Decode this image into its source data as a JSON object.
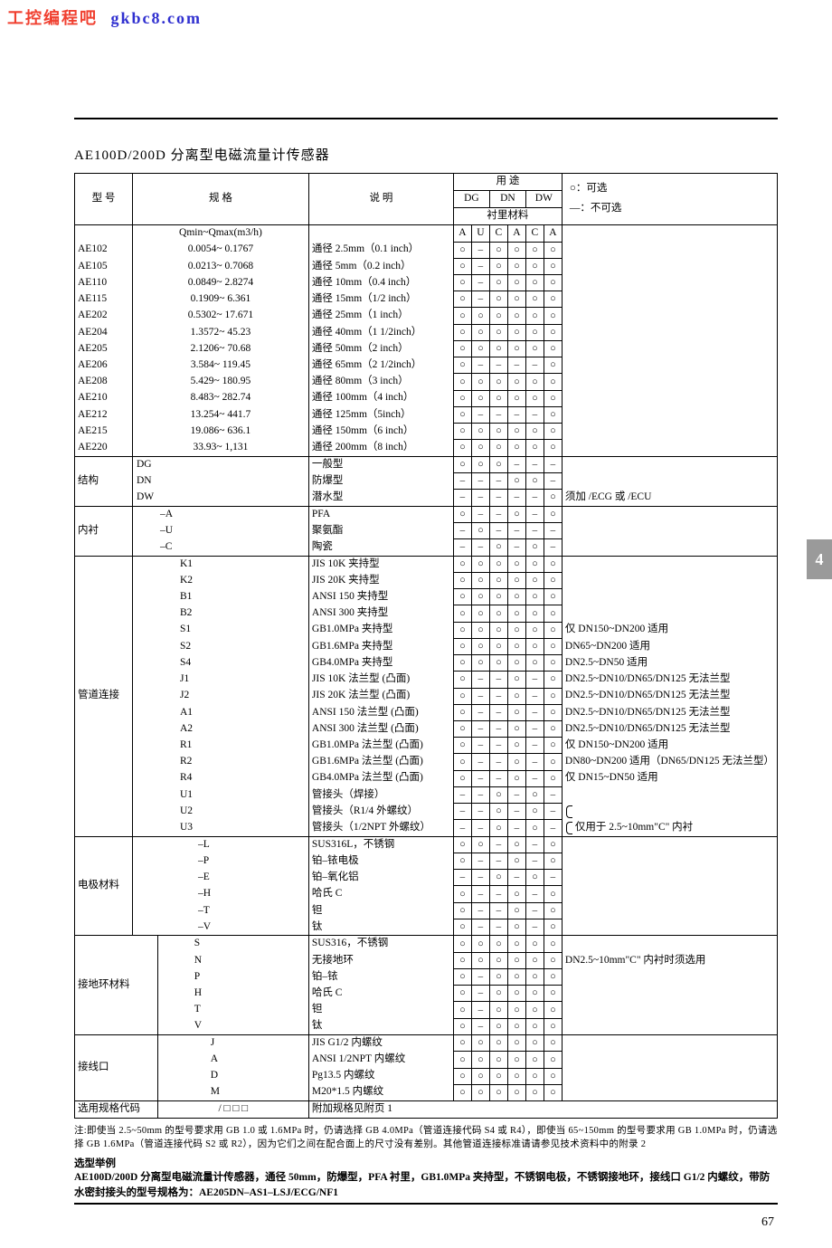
{
  "watermark": {
    "ch": "工控编程吧",
    "en": "gkbc8.com"
  },
  "title": "AE100D/200D 分离型电磁流量计传感器",
  "legend": {
    "optional": "○：可选",
    "not_optional": "—：不可选"
  },
  "header": {
    "model": "型  号",
    "spec": "规      格",
    "desc": "说      明",
    "use": "用      途",
    "group_DG": "DG",
    "group_DN": "DN",
    "group_DW": "DW",
    "lining": "衬里材料",
    "cols": [
      "A",
      "U",
      "C",
      "A",
      "C",
      "A"
    ]
  },
  "spec_header": "Qmin~Qmax(m3/h)",
  "size_rows": [
    {
      "model": "AE102",
      "spec": "0.0054~ 0.1767",
      "desc": "通径 2.5mm（0.1 inch）",
      "m": [
        "○",
        "–",
        "○",
        "○",
        "○",
        "○"
      ]
    },
    {
      "model": "AE105",
      "spec": "0.0213~ 0.7068",
      "desc": "通径 5mm（0.2 inch）",
      "m": [
        "○",
        "–",
        "○",
        "○",
        "○",
        "○"
      ]
    },
    {
      "model": "AE110",
      "spec": "0.0849~ 2.8274",
      "desc": "通径 10mm（0.4 inch）",
      "m": [
        "○",
        "–",
        "○",
        "○",
        "○",
        "○"
      ]
    },
    {
      "model": "AE115",
      "spec": "0.1909~ 6.361",
      "desc": "通径 15mm（1/2 inch）",
      "m": [
        "○",
        "–",
        "○",
        "○",
        "○",
        "○"
      ]
    },
    {
      "model": "AE202",
      "spec": "0.5302~ 17.671",
      "desc": "通径 25mm（1 inch）",
      "m": [
        "○",
        "○",
        "○",
        "○",
        "○",
        "○"
      ]
    },
    {
      "model": "AE204",
      "spec": "1.3572~ 45.23",
      "desc": "通径 40mm（1 1/2inch）",
      "m": [
        "○",
        "○",
        "○",
        "○",
        "○",
        "○"
      ]
    },
    {
      "model": "AE205",
      "spec": "2.1206~ 70.68",
      "desc": "通径 50mm（2 inch）",
      "m": [
        "○",
        "○",
        "○",
        "○",
        "○",
        "○"
      ]
    },
    {
      "model": "AE206",
      "spec": "3.584~ 119.45",
      "desc": "通径 65mm（2 1/2inch）",
      "m": [
        "○",
        "–",
        "–",
        "–",
        "–",
        "○"
      ]
    },
    {
      "model": "AE208",
      "spec": "5.429~ 180.95",
      "desc": "通径 80mm（3 inch）",
      "m": [
        "○",
        "○",
        "○",
        "○",
        "○",
        "○"
      ]
    },
    {
      "model": "AE210",
      "spec": "8.483~ 282.74",
      "desc": "通径 100mm（4 inch）",
      "m": [
        "○",
        "○",
        "○",
        "○",
        "○",
        "○"
      ]
    },
    {
      "model": "AE212",
      "spec": "13.254~ 441.7",
      "desc": "通径 125mm（5inch）",
      "m": [
        "○",
        "–",
        "–",
        "–",
        "–",
        "○"
      ]
    },
    {
      "model": "AE215",
      "spec": "19.086~ 636.1",
      "desc": "通径 150mm（6 inch）",
      "m": [
        "○",
        "○",
        "○",
        "○",
        "○",
        "○"
      ]
    },
    {
      "model": "AE220",
      "spec": "33.93~ 1,131",
      "desc": "通径 200mm（8 inch）",
      "m": [
        "○",
        "○",
        "○",
        "○",
        "○",
        "○"
      ]
    }
  ],
  "structure": {
    "label": "结构",
    "rows": [
      {
        "code": "DG",
        "desc": "一般型",
        "m": [
          "○",
          "○",
          "○",
          "–",
          "–",
          "–"
        ],
        "note": ""
      },
      {
        "code": "DN",
        "desc": "防爆型",
        "m": [
          "–",
          "–",
          "–",
          "○",
          "○",
          "–"
        ],
        "note": ""
      },
      {
        "code": "DW",
        "desc": "潜水型",
        "m": [
          "–",
          "–",
          "–",
          "–",
          "–",
          "○"
        ],
        "note": "须加 /ECG 或 /ECU"
      }
    ]
  },
  "lining": {
    "label": "内衬",
    "rows": [
      {
        "code": "–A",
        "desc": "PFA",
        "m": [
          "○",
          "–",
          "–",
          "○",
          "–",
          "○"
        ]
      },
      {
        "code": "–U",
        "desc": "聚氨酯",
        "m": [
          "–",
          "○",
          "–",
          "–",
          "–",
          "–"
        ]
      },
      {
        "code": "–C",
        "desc": "陶瓷",
        "m": [
          "–",
          "–",
          "○",
          "–",
          "○",
          "–"
        ]
      }
    ]
  },
  "pipe": {
    "label": "管道连接",
    "rows": [
      {
        "code": "K1",
        "desc": "JIS 10K 夹持型",
        "m": [
          "○",
          "○",
          "○",
          "○",
          "○",
          "○"
        ],
        "note": ""
      },
      {
        "code": "K2",
        "desc": "JIS 20K 夹持型",
        "m": [
          "○",
          "○",
          "○",
          "○",
          "○",
          "○"
        ],
        "note": ""
      },
      {
        "code": "B1",
        "desc": "ANSI 150 夹持型",
        "m": [
          "○",
          "○",
          "○",
          "○",
          "○",
          "○"
        ],
        "note": ""
      },
      {
        "code": "B2",
        "desc": "ANSI 300 夹持型",
        "m": [
          "○",
          "○",
          "○",
          "○",
          "○",
          "○"
        ],
        "note": ""
      },
      {
        "code": "S1",
        "desc": "GB1.0MPa 夹持型",
        "m": [
          "○",
          "○",
          "○",
          "○",
          "○",
          "○"
        ],
        "note": "仅 DN150~DN200 适用"
      },
      {
        "code": "S2",
        "desc": "GB1.6MPa 夹持型",
        "m": [
          "○",
          "○",
          "○",
          "○",
          "○",
          "○"
        ],
        "note": "DN65~DN200 适用"
      },
      {
        "code": "S4",
        "desc": "GB4.0MPa 夹持型",
        "m": [
          "○",
          "○",
          "○",
          "○",
          "○",
          "○"
        ],
        "note": "DN2.5~DN50 适用"
      },
      {
        "code": "J1",
        "desc": "JIS 10K 法兰型 (凸面)",
        "m": [
          "○",
          "–",
          "–",
          "○",
          "–",
          "○"
        ],
        "note": "DN2.5~DN10/DN65/DN125 无法兰型"
      },
      {
        "code": "J2",
        "desc": "JIS 20K 法兰型 (凸面)",
        "m": [
          "○",
          "–",
          "–",
          "○",
          "–",
          "○"
        ],
        "note": "DN2.5~DN10/DN65/DN125 无法兰型"
      },
      {
        "code": "A1",
        "desc": "ANSI 150 法兰型 (凸面)",
        "m": [
          "○",
          "–",
          "–",
          "○",
          "–",
          "○"
        ],
        "note": "DN2.5~DN10/DN65/DN125 无法兰型"
      },
      {
        "code": "A2",
        "desc": "ANSI 300 法兰型 (凸面)",
        "m": [
          "○",
          "–",
          "–",
          "○",
          "–",
          "○"
        ],
        "note": "DN2.5~DN10/DN65/DN125 无法兰型"
      },
      {
        "code": "R1",
        "desc": "GB1.0MPa 法兰型 (凸面)",
        "m": [
          "○",
          "–",
          "–",
          "○",
          "–",
          "○"
        ],
        "note": "仅 DN150~DN200 适用"
      },
      {
        "code": "R2",
        "desc": "GB1.6MPa 法兰型 (凸面)",
        "m": [
          "○",
          "–",
          "–",
          "○",
          "–",
          "○"
        ],
        "note": "DN80~DN200 适用（DN65/DN125 无法兰型）"
      },
      {
        "code": "R4",
        "desc": "GB4.0MPa 法兰型 (凸面)",
        "m": [
          "○",
          "–",
          "–",
          "○",
          "–",
          "○"
        ],
        "note": "仅 DN15~DN50 适用"
      },
      {
        "code": "U1",
        "desc": "管接头（焊接）",
        "m": [
          "–",
          "–",
          "○",
          "–",
          "○",
          "–"
        ],
        "note": ""
      },
      {
        "code": "U2",
        "desc": "管接头（R1/4 外螺纹）",
        "m": [
          "–",
          "–",
          "○",
          "–",
          "○",
          "–"
        ],
        "note": "",
        "brace": true
      },
      {
        "code": "U3",
        "desc": "管接头（1/2NPT 外螺纹）",
        "m": [
          "–",
          "–",
          "○",
          "–",
          "○",
          "–"
        ],
        "note": "仅用于 2.5~10mm\"C\" 内衬",
        "brace": true
      }
    ]
  },
  "electrode": {
    "label": "电极材料",
    "rows": [
      {
        "code": "–L",
        "desc": "SUS316L，不锈钢",
        "m": [
          "○",
          "○",
          "–",
          "○",
          "–",
          "○"
        ]
      },
      {
        "code": "–P",
        "desc": "铂–铱电极",
        "m": [
          "○",
          "–",
          "–",
          "○",
          "–",
          "○"
        ]
      },
      {
        "code": "–E",
        "desc": "铂–氧化铝",
        "m": [
          "–",
          "–",
          "○",
          "–",
          "○",
          "–"
        ]
      },
      {
        "code": "–H",
        "desc": "哈氏 C",
        "m": [
          "○",
          "–",
          "–",
          "○",
          "–",
          "○"
        ]
      },
      {
        "code": "–T",
        "desc": "钽",
        "m": [
          "○",
          "–",
          "–",
          "○",
          "–",
          "○"
        ]
      },
      {
        "code": "–V",
        "desc": "钛",
        "m": [
          "○",
          "–",
          "–",
          "○",
          "–",
          "○"
        ]
      }
    ]
  },
  "ground": {
    "label": "接地环材料",
    "rows": [
      {
        "code": "S",
        "desc": "SUS316，不锈钢",
        "m": [
          "○",
          "○",
          "○",
          "○",
          "○",
          "○"
        ],
        "note": ""
      },
      {
        "code": "N",
        "desc": "无接地环",
        "m": [
          "○",
          "○",
          "○",
          "○",
          "○",
          "○"
        ],
        "note": "DN2.5~10mm\"C\" 内衬时须选用"
      },
      {
        "code": "P",
        "desc": "铂–铱",
        "m": [
          "○",
          "–",
          "○",
          "○",
          "○",
          "○"
        ],
        "note": ""
      },
      {
        "code": "H",
        "desc": "哈氏 C",
        "m": [
          "○",
          "–",
          "○",
          "○",
          "○",
          "○"
        ],
        "note": ""
      },
      {
        "code": "T",
        "desc": "钽",
        "m": [
          "○",
          "–",
          "○",
          "○",
          "○",
          "○"
        ],
        "note": ""
      },
      {
        "code": "V",
        "desc": "钛",
        "m": [
          "○",
          "–",
          "○",
          "○",
          "○",
          "○"
        ],
        "note": ""
      }
    ]
  },
  "wiring": {
    "label": "接线口",
    "rows": [
      {
        "code": "J",
        "desc": "JIS G1/2 内螺纹",
        "m": [
          "○",
          "○",
          "○",
          "○",
          "○",
          "○"
        ]
      },
      {
        "code": "A",
        "desc": "ANSI 1/2NPT 内螺纹",
        "m": [
          "○",
          "○",
          "○",
          "○",
          "○",
          "○"
        ]
      },
      {
        "code": "D",
        "desc": "Pg13.5 内螺纹",
        "m": [
          "○",
          "○",
          "○",
          "○",
          "○",
          "○"
        ]
      },
      {
        "code": "M",
        "desc": "M20*1.5 内螺纹",
        "m": [
          "○",
          "○",
          "○",
          "○",
          "○",
          "○"
        ]
      }
    ]
  },
  "option_row": {
    "label": "选用规格代码",
    "boxes": "/ □ □ □",
    "desc": "附加规格见附页 1"
  },
  "footnote": "注:即使当 2.5~50mm 的型号要求用 GB 1.0 或 1.6MPa 时，仍请选择 GB 4.0MPa（管道连接代码 S4 或 R4），即使当 65~150mm 的型号要求用 GB 1.0MPa 时，仍请选择 GB 1.6MPa（管道连接代码 S2 或 R2），因为它们之间在配合面上的尺寸没有差别。其他管道连接标准请请参见技术资料中的附录 2",
  "example_hd": "选型举例",
  "example_body": "AE100D/200D 分离型电磁流量计传感器，通径 50mm，防爆型，PFA 衬里，GB1.0MPa 夹持型，不锈钢电极，不锈钢接地环，接线口 G1/2 内螺纹，带防水密封接头的型号规格为：AE205DN–AS1–LSJ/ECG/NF1",
  "pagenum": "67",
  "side_tab": "4",
  "colors": {
    "wm_ch": "#f04030",
    "wm_en": "#3030d0",
    "tab_bg": "#9a9a9a"
  }
}
